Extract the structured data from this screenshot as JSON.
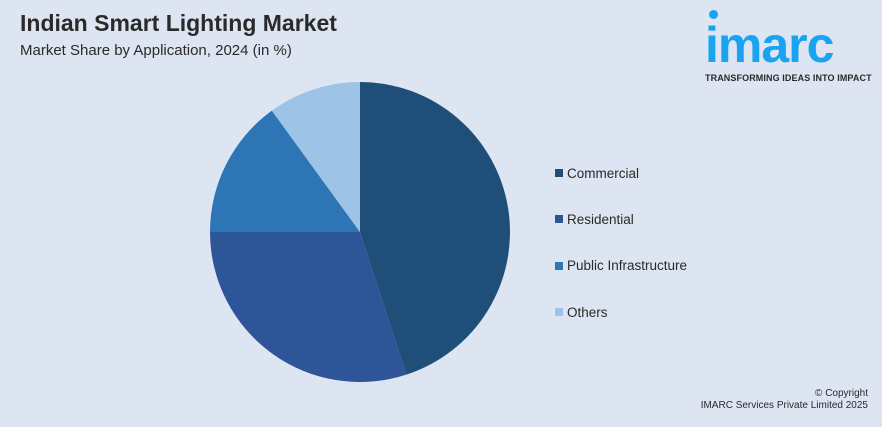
{
  "header": {
    "title": "Indian Smart Lighting Market",
    "subtitle": "Market Share by Application, 2024 (in %)"
  },
  "logo": {
    "text": "imarc",
    "tagline": "TRANSFORMING IDEAS INTO IMPACT",
    "color": "#1aa3f0"
  },
  "chart_data": {
    "type": "pie",
    "title": "Indian Smart Lighting Market",
    "subtitle": "Market Share by Application, 2024 (in %)",
    "categories": [
      "Commercial",
      "Residential",
      "Public Infrastructure",
      "Others"
    ],
    "values": [
      45,
      30,
      15,
      10
    ],
    "colors": [
      "#1f4e79",
      "#2e5597",
      "#2e75b6",
      "#9dc3e6"
    ],
    "legend": "right"
  },
  "footer": {
    "copyright": "© Copyright",
    "company": "IMARC Services Private Limited 2025"
  }
}
